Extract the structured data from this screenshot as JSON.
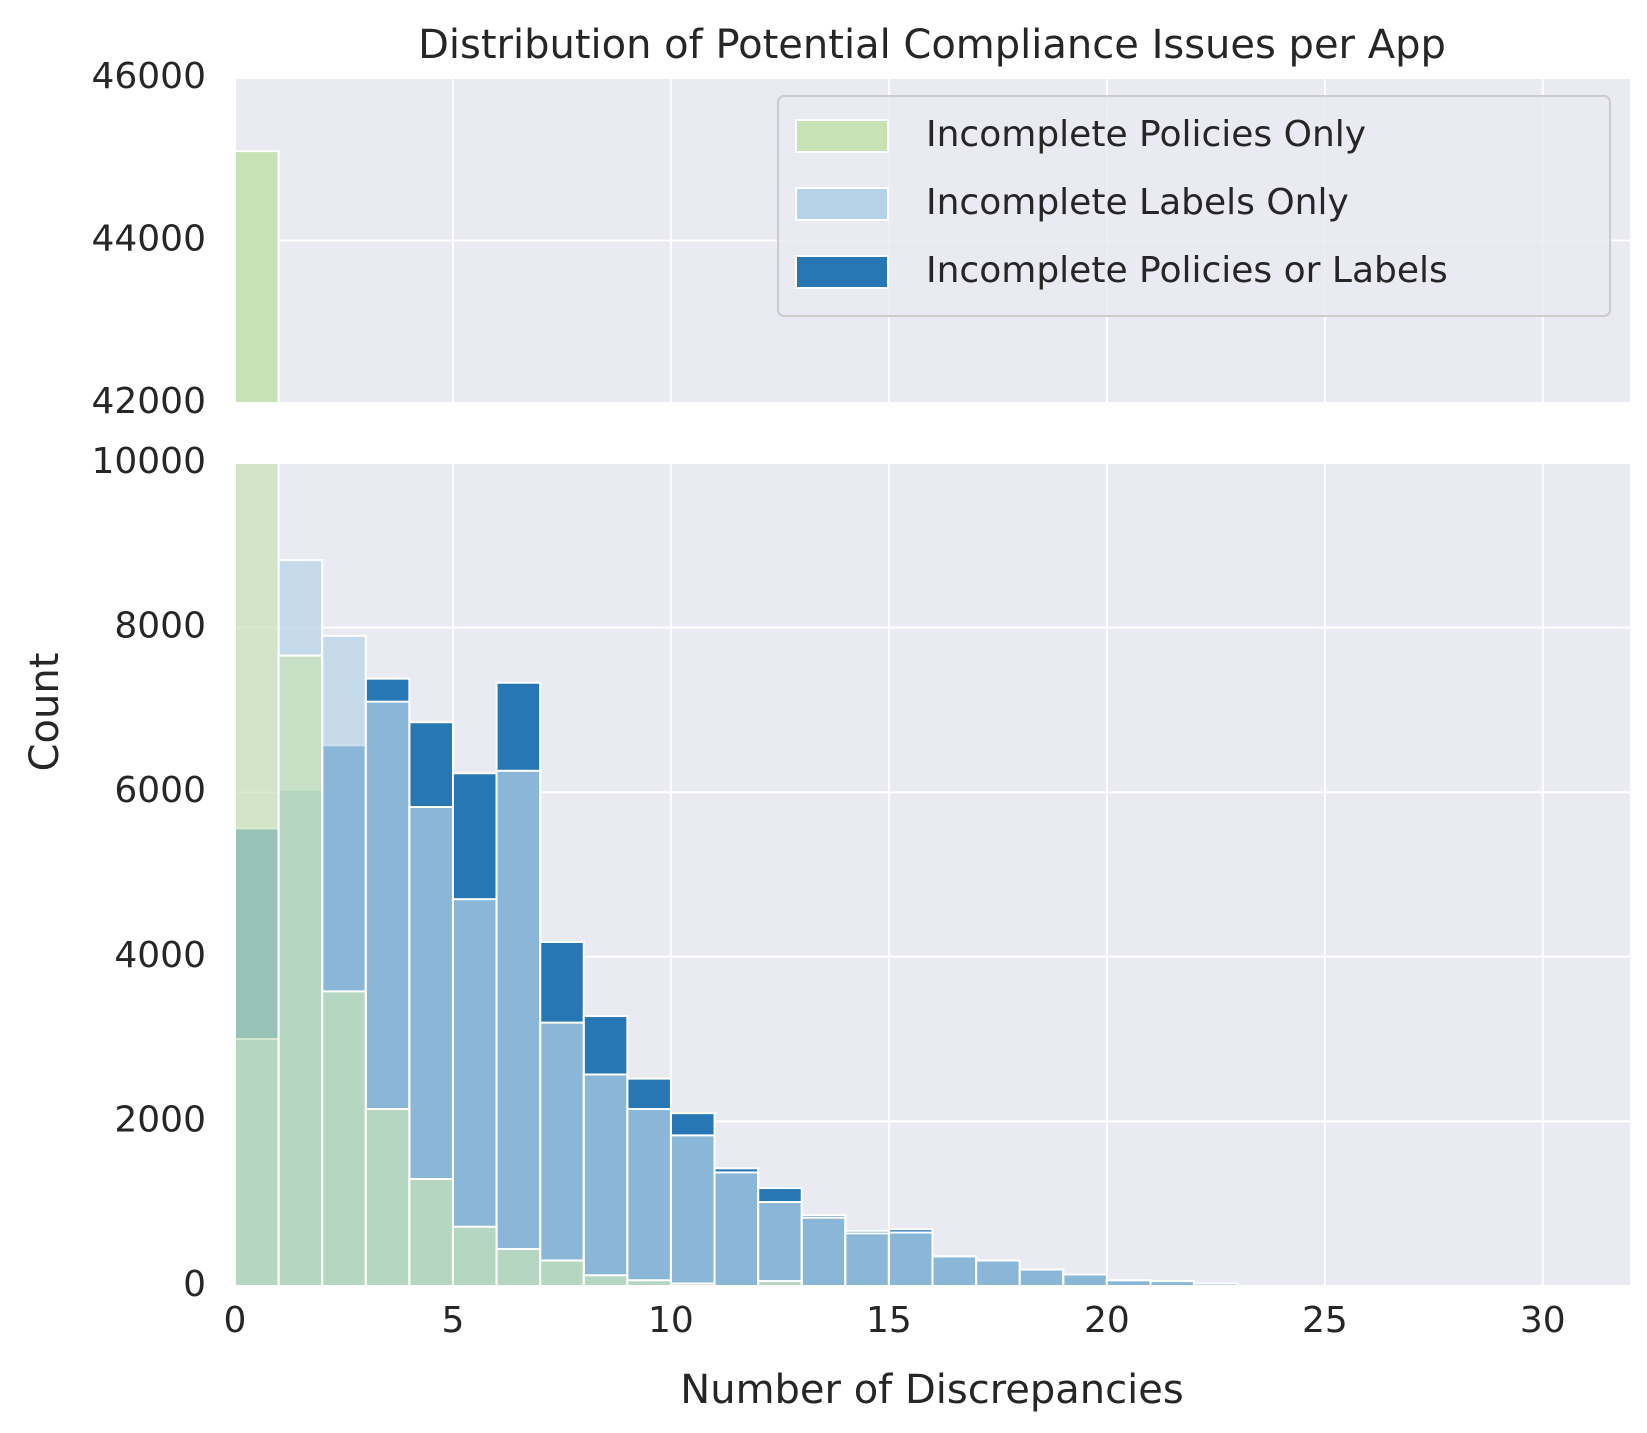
{
  "chart_data": {
    "type": "bar",
    "title": "Distribution of Potential Compliance Issues per App",
    "xlabel": "Number of Discrepancies",
    "ylabel": "Count",
    "xlim": [
      0,
      32
    ],
    "x_ticks": [
      "0",
      "5",
      "10",
      "15",
      "20",
      "25",
      "30"
    ],
    "bin_width": 1,
    "grid": true,
    "broken_axis": {
      "top_ylim": [
        42000,
        46000
      ],
      "top_y_ticks": [
        "42000",
        "44000",
        "46000"
      ],
      "bottom_ylim": [
        0,
        10000
      ],
      "bottom_y_ticks": [
        "0",
        "2000",
        "4000",
        "6000",
        "8000",
        "10000"
      ]
    },
    "legend_position": "top-right",
    "bin_starts": [
      0,
      1,
      2,
      3,
      4,
      5,
      6,
      7,
      8,
      9,
      10,
      11,
      12,
      13,
      14,
      15,
      16,
      17,
      18,
      19,
      20,
      21,
      22
    ],
    "series": [
      {
        "name": "Incomplete Policies Only",
        "color": "#c7e3b6",
        "values": [
          45100,
          7660,
          3580,
          2150,
          1300,
          720,
          450,
          310,
          130,
          70,
          30,
          0,
          60,
          0,
          0,
          0,
          0,
          0,
          0,
          0,
          0,
          0,
          0
        ]
      },
      {
        "name": "Incomplete Labels Only",
        "color": "#b5d3e7",
        "values": [
          3000,
          8820,
          7900,
          7100,
          5820,
          4700,
          6260,
          3200,
          2570,
          2150,
          1830,
          1380,
          1020,
          830,
          640,
          650,
          360,
          310,
          200,
          140,
          70,
          60,
          30
        ]
      },
      {
        "name": "Incomplete Policies or Labels",
        "color": "#2677b4",
        "values": [
          5560,
          6030,
          6570,
          7380,
          6850,
          6230,
          7330,
          4180,
          3280,
          2520,
          2100,
          1430,
          1190,
          860,
          670,
          690,
          360,
          310,
          200,
          140,
          70,
          60,
          30
        ]
      }
    ]
  }
}
